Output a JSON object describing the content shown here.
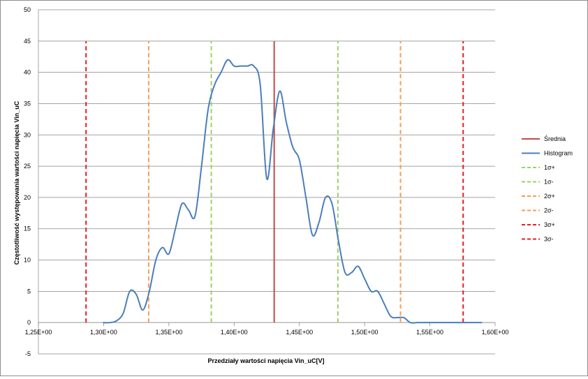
{
  "chart_data": {
    "type": "line",
    "title": "",
    "xlabel": "Przedziały wartości napięcia  Vin_uC[V]",
    "ylabel": "Częstotliwość występowania wartości napięcia Vin_uC",
    "xlim": [
      1.25,
      1.6
    ],
    "ylim": [
      -5,
      50
    ],
    "x_ticks": [
      1.25,
      1.3,
      1.35,
      1.4,
      1.45,
      1.5,
      1.55,
      1.6
    ],
    "x_tick_labels": [
      "1,25E+00",
      "1,30E+00",
      "1,35E+00",
      "1,40E+00",
      "1,45E+00",
      "1,50E+00",
      "1,55E+00",
      "1,60E+00"
    ],
    "y_ticks": [
      -5,
      0,
      5,
      10,
      15,
      20,
      25,
      30,
      35,
      40,
      45,
      50
    ],
    "y_tick_labels": [
      "-5",
      "0",
      "5",
      "10",
      "15",
      "20",
      "25",
      "30",
      "35",
      "40",
      "45",
      "50"
    ],
    "grid": "horizontal",
    "legend_position": "right",
    "series": [
      {
        "name": "Średnia",
        "kind": "vline",
        "x": 1.4307,
        "y_range": [
          0,
          45
        ],
        "color": "#be4b48",
        "dash": "solid"
      },
      {
        "name": "Histogram",
        "kind": "curve",
        "color": "#4a7ebb",
        "x": [
          1.2995,
          1.305,
          1.31,
          1.315,
          1.32,
          1.325,
          1.33,
          1.335,
          1.34,
          1.345,
          1.35,
          1.355,
          1.36,
          1.365,
          1.37,
          1.375,
          1.38,
          1.385,
          1.39,
          1.395,
          1.4,
          1.405,
          1.41,
          1.415,
          1.42,
          1.425,
          1.43,
          1.435,
          1.44,
          1.445,
          1.45,
          1.455,
          1.46,
          1.465,
          1.47,
          1.475,
          1.48,
          1.485,
          1.49,
          1.495,
          1.5,
          1.505,
          1.51,
          1.515,
          1.52,
          1.525,
          1.53,
          1.535,
          1.54,
          1.545,
          1.55,
          1.555,
          1.56,
          1.565,
          1.57,
          1.575,
          1.58,
          1.585,
          1.59
        ],
        "values": [
          0,
          0,
          0.3,
          1.5,
          5,
          4.5,
          2,
          5,
          10,
          12,
          11,
          15,
          19,
          18,
          17,
          25,
          34,
          38,
          40,
          42,
          41,
          41,
          41,
          41,
          38,
          23,
          31,
          37,
          32,
          28,
          26,
          20,
          14,
          16,
          20,
          19,
          13,
          8,
          8,
          9,
          7,
          5,
          5,
          3,
          1,
          0.8,
          0.8,
          0,
          0,
          0,
          0,
          0,
          0,
          0,
          0,
          0,
          0,
          0,
          0
        ]
      },
      {
        "name": "1σ+",
        "kind": "vline",
        "x": 1.4795,
        "y_range": [
          0,
          45
        ],
        "color": "#9bd164",
        "dash": "dashed"
      },
      {
        "name": "1σ-",
        "kind": "vline",
        "x": 1.3825,
        "y_range": [
          0,
          45
        ],
        "color": "#9bd164",
        "dash": "dashed"
      },
      {
        "name": "2σ+",
        "kind": "vline",
        "x": 1.5275,
        "y_range": [
          0,
          45
        ],
        "color": "#f59d56",
        "dash": "dashed"
      },
      {
        "name": "2σ-",
        "kind": "vline",
        "x": 1.3345,
        "y_range": [
          0,
          45
        ],
        "color": "#f59d56",
        "dash": "dashed"
      },
      {
        "name": "3σ+",
        "kind": "vline",
        "x": 1.5755,
        "y_range": [
          0,
          45
        ],
        "color": "#e2202a",
        "dash": "dashed"
      },
      {
        "name": "3σ-",
        "kind": "vline",
        "x": 1.2865,
        "y_range": [
          0,
          45
        ],
        "color": "#e2202a",
        "dash": "dashed"
      }
    ]
  }
}
